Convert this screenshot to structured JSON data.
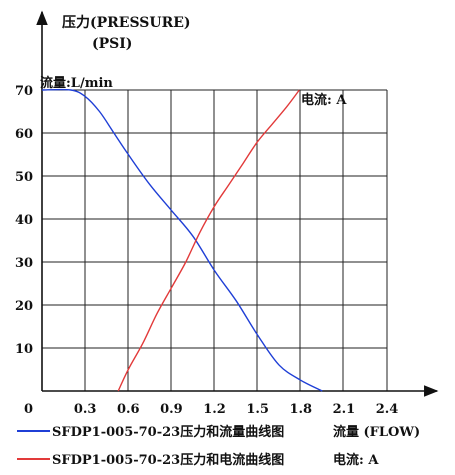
{
  "chart_data": {
    "type": "line",
    "y_title_line1": "压力(PRESSURE)",
    "y_title_line2": "(PSI)",
    "x_unit_label": "流量:L/min",
    "current_unit_label": "电流: A",
    "x_ticks": [
      "0",
      "0.3",
      "0.6",
      "0.9",
      "1.2",
      "1.5",
      "1.8",
      "2.1",
      "2.4"
    ],
    "x_tick_values": [
      0,
      0.3,
      0.6,
      0.9,
      1.2,
      1.5,
      1.8,
      2.1,
      2.4
    ],
    "y_ticks": [
      "10",
      "20",
      "30",
      "40",
      "50",
      "60",
      "70"
    ],
    "y_tick_values": [
      10,
      20,
      30,
      40,
      50,
      60,
      70
    ],
    "xlim": [
      0,
      2.4
    ],
    "ylim": [
      0,
      70
    ],
    "grid": true,
    "series": [
      {
        "name": "SFDP1-005-70-23压力和流量曲线图",
        "legend_right": "流量 (FLOW)",
        "color": "#1f3fd6",
        "points": [
          [
            0,
            70
          ],
          [
            0.2,
            70
          ],
          [
            0.3,
            68.5
          ],
          [
            0.4,
            65
          ],
          [
            0.5,
            60
          ],
          [
            0.6,
            55
          ],
          [
            0.75,
            48
          ],
          [
            0.9,
            42
          ],
          [
            1.05,
            36
          ],
          [
            1.2,
            28
          ],
          [
            1.35,
            21
          ],
          [
            1.5,
            13
          ],
          [
            1.65,
            6
          ],
          [
            1.8,
            2.5
          ],
          [
            1.95,
            0
          ]
        ]
      },
      {
        "name": "SFDP1-005-70-23压力和电流曲线图",
        "legend_right": "电流: A",
        "color": "#e23a3a",
        "points": [
          [
            0.53,
            0
          ],
          [
            0.6,
            5
          ],
          [
            0.7,
            11
          ],
          [
            0.8,
            18
          ],
          [
            0.9,
            24
          ],
          [
            1.0,
            30
          ],
          [
            1.1,
            37
          ],
          [
            1.2,
            43
          ],
          [
            1.3,
            48
          ],
          [
            1.4,
            53
          ],
          [
            1.5,
            58
          ],
          [
            1.6,
            62
          ],
          [
            1.7,
            66
          ],
          [
            1.79,
            70
          ]
        ]
      }
    ]
  }
}
